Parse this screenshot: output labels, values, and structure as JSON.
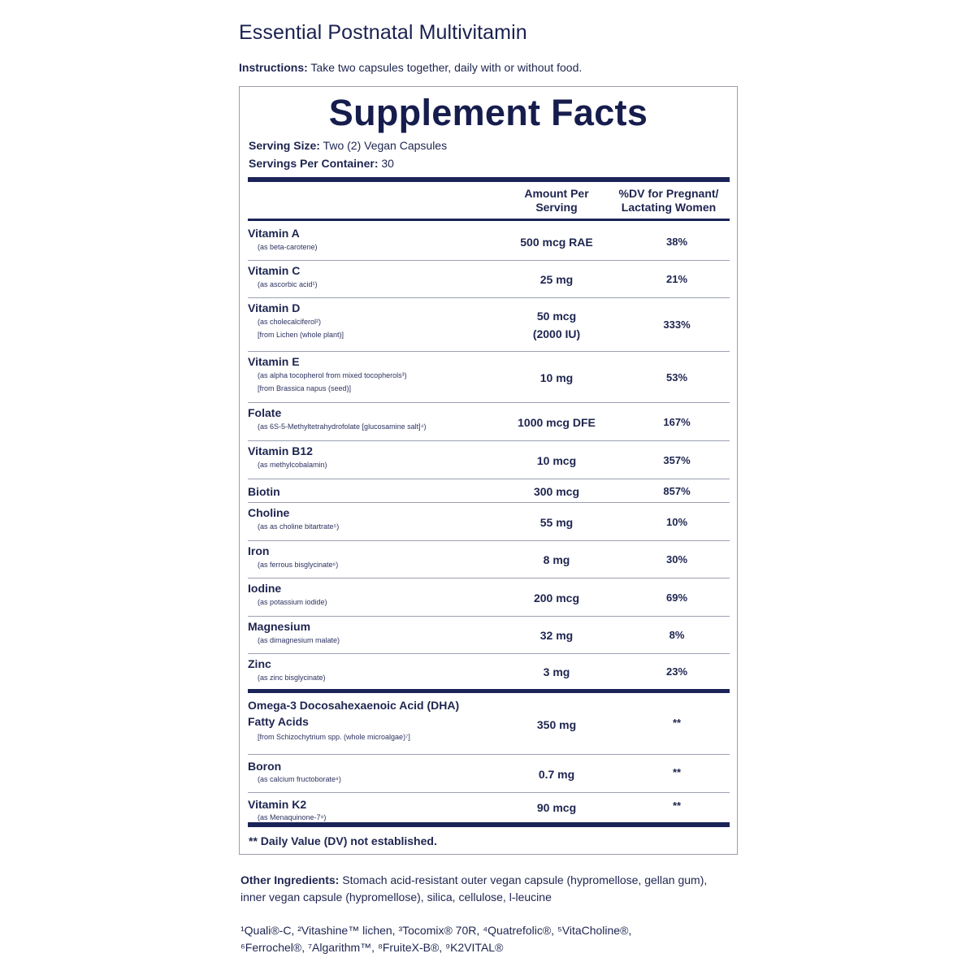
{
  "product_title": "Essential Postnatal Multivitamin",
  "instructions": {
    "label": "Instructions:",
    "text": " Take two capsules together, daily with or without food."
  },
  "facts_title": "Supplement Facts",
  "serving_size": {
    "label": "Serving Size:",
    "value": " Two (2) Vegan Capsules"
  },
  "servings_per_container": {
    "label": "Servings Per Container:",
    "value": " 30"
  },
  "columns": {
    "amount_line1": "Amount Per",
    "amount_line2": "Serving",
    "dv_line1": "%DV for Pregnant/",
    "dv_line2": "Lactating Women"
  },
  "nutrients": [
    {
      "name": "Vitamin A",
      "sub1": "(as beta-carotene)",
      "sub2": "",
      "amount": "500 mcg RAE",
      "amount2": "",
      "dv": "38%"
    },
    {
      "name": "Vitamin C",
      "sub1": "(as ascorbic acid¹)",
      "sub2": "",
      "amount": "25 mg",
      "amount2": "",
      "dv": "21%"
    },
    {
      "name": "Vitamin D",
      "sub1": "(as cholecalciferol²)",
      "sub2": "[from Lichen (whole plant)]",
      "amount": "50 mcg",
      "amount2": "(2000 IU)",
      "dv": "333%"
    },
    {
      "name": "Vitamin E",
      "sub1": "(as alpha tocopherol from mixed tocopherols³)",
      "sub2": "[from Brassica napus (seed)]",
      "amount": "10 mg",
      "amount2": "",
      "dv": "53%"
    },
    {
      "name": "Folate",
      "sub1": "(as 6S-5-Methyltetrahydrofolate [glucosamine salt]⁴)",
      "sub2": "",
      "amount": "1000 mcg DFE",
      "amount2": "",
      "dv": "167%"
    },
    {
      "name": "Vitamin B12",
      "sub1": "(as methylcobalamin)",
      "sub2": "",
      "amount": "10 mcg",
      "amount2": "",
      "dv": "357%"
    },
    {
      "name": "Biotin",
      "sub1": "",
      "sub2": "",
      "amount": "300 mcg",
      "amount2": "",
      "dv": "857%"
    },
    {
      "name": "Choline",
      "sub1": "(as as choline bitartrate⁵)",
      "sub2": "",
      "amount": "55 mg",
      "amount2": "",
      "dv": "10%"
    },
    {
      "name": "Iron",
      "sub1": "(as ferrous bisglycinate⁶)",
      "sub2": "",
      "amount": "8 mg",
      "amount2": "",
      "dv": "30%"
    },
    {
      "name": "Iodine",
      "sub1": "(as potassium iodide)",
      "sub2": "",
      "amount": "200 mcg",
      "amount2": "",
      "dv": "69%"
    },
    {
      "name": "Magnesium",
      "sub1": "(as dimagnesium malate)",
      "sub2": "",
      "amount": "32 mg",
      "amount2": "",
      "dv": "8%"
    },
    {
      "name": "Zinc",
      "sub1": "(as zinc bisglycinate)",
      "sub2": "",
      "amount": "3 mg",
      "amount2": "",
      "dv": "23%"
    }
  ],
  "extras": [
    {
      "name": "Omega-3 Docosahexaenoic Acid (DHA)",
      "name2": "Fatty Acids",
      "sub1": "[from Schizochytrium spp. (whole microalgae)⁷]",
      "amount": "350 mg",
      "dv": "**"
    },
    {
      "name": "Boron",
      "name2": "",
      "sub1": "(as calcium fructoborate⁸)",
      "amount": "0.7 mg",
      "dv": "**"
    },
    {
      "name": "Vitamin K2",
      "name2": "",
      "sub1": "(as Menaquinone-7⁹)",
      "amount": "90 mcg",
      "dv": "**"
    }
  ],
  "footnote": "** Daily Value (DV) not established.",
  "other_ingredients": {
    "label": "Other Ingredients:",
    "text": " Stomach acid-resistant outer vegan capsule (hypromellose, gellan gum), inner vegan capsule (hypromellose),  silica, cellulose, l-leucine"
  },
  "trademarks_line1": "¹Quali®-C, ²Vitashine™ lichen,  ³Tocomix® 70R, ⁴Quatrefolic®, ⁵VitaCholine®,",
  "trademarks_line2": "⁶Ferrochel®, ⁷Algarithm™, ⁸FruiteX-B®, ⁹K2VITAL®"
}
